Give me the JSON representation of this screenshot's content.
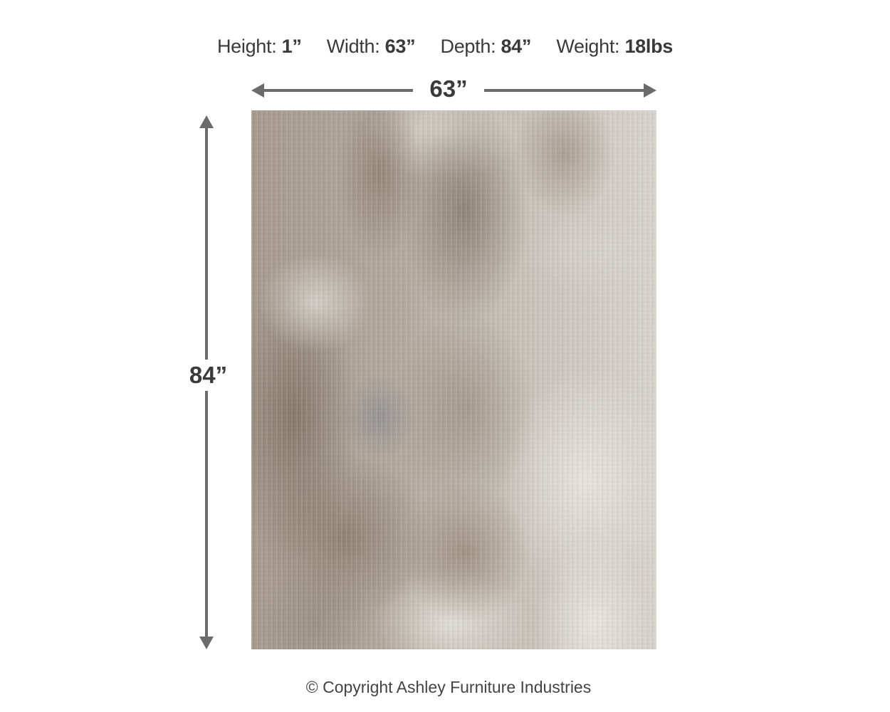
{
  "specs": [
    {
      "label": "Height:",
      "value": "1”"
    },
    {
      "label": "Width:",
      "value": "63”"
    },
    {
      "label": "Depth:",
      "value": "84”"
    },
    {
      "label": "Weight:",
      "value": "18lbs"
    }
  ],
  "dimensions": {
    "width_label": "63”",
    "height_label": "84”"
  },
  "colors": {
    "arrow": "#6b6b6b",
    "text": "#3a3a3a"
  },
  "copyright": "© Copyright Ashley Furniture Industries"
}
